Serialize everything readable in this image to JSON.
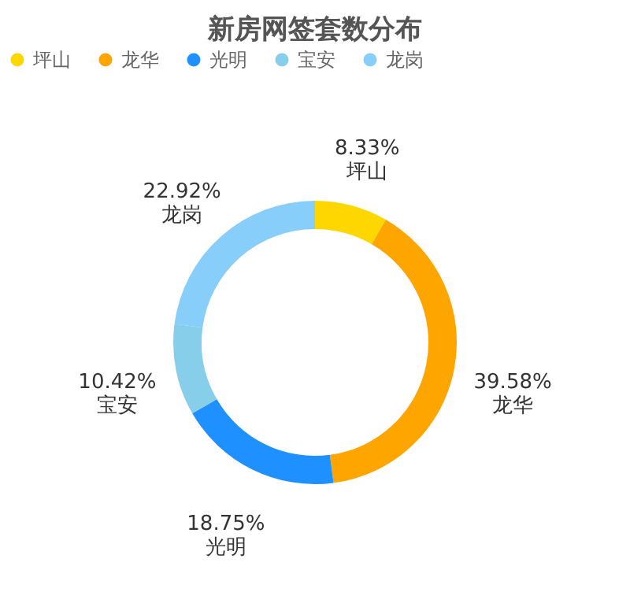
{
  "chart_data": {
    "type": "donut",
    "title": "新房网签套数分布",
    "categories": [
      "坪山",
      "龙华",
      "光明",
      "宝安",
      "龙岗"
    ],
    "values": [
      8.33,
      39.58,
      18.75,
      10.42,
      22.92
    ],
    "colors": [
      "#ffd700",
      "#ffa500",
      "#1e90ff",
      "#87ceeb",
      "#87cefa"
    ],
    "value_labels": [
      "8.33%",
      "39.58%",
      "18.75%",
      "10.42%",
      "22.92%"
    ],
    "legend": "top"
  }
}
